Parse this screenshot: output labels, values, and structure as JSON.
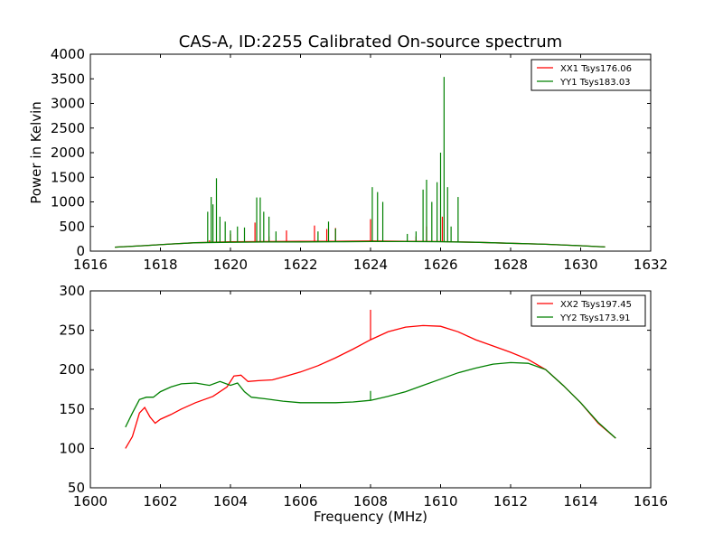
{
  "chart_data": [
    {
      "type": "line",
      "title": "CAS-A, ID:2255 Calibrated On-source spectrum",
      "xlabel": "",
      "ylabel": "Power in Kelvin",
      "xlim": [
        1616,
        1632
      ],
      "ylim": [
        0,
        4000
      ],
      "x_ticks": [
        1616,
        1618,
        1620,
        1622,
        1624,
        1626,
        1628,
        1630,
        1632
      ],
      "y_ticks": [
        0,
        500,
        1000,
        1500,
        2000,
        2500,
        3000,
        3500,
        4000
      ],
      "x_tick_labels": [
        "1616",
        "1618",
        "1620",
        "1622",
        "1624",
        "1626",
        "1628",
        "1630",
        "1632"
      ],
      "y_tick_labels": [
        "0",
        "500",
        "1000",
        "1500",
        "2000",
        "2500",
        "3000",
        "3500",
        "4000"
      ],
      "grid": false,
      "legend_position": "top-right",
      "series": [
        {
          "name": "XX1 Tsys176.06",
          "color": "#ff0000",
          "x": [
            1616.7,
            1617.5,
            1618.3,
            1619.0,
            1620.0,
            1621.0,
            1622.0,
            1623.0,
            1624.0,
            1625.0,
            1626.0,
            1627.0,
            1628.0,
            1629.0,
            1630.0,
            1630.7
          ],
          "values": [
            80,
            110,
            145,
            170,
            190,
            195,
            198,
            200,
            205,
            200,
            195,
            180,
            160,
            140,
            110,
            85
          ],
          "spikes": [
            [
              1619.4,
              220
            ],
            [
              1620.0,
              350
            ],
            [
              1620.7,
              580
            ],
            [
              1621.1,
              300
            ],
            [
              1621.6,
              420
            ],
            [
              1622.4,
              520
            ],
            [
              1622.75,
              450
            ],
            [
              1623.0,
              470
            ],
            [
              1624.0,
              650
            ],
            [
              1625.3,
              300
            ],
            [
              1625.6,
              500
            ],
            [
              1626.05,
              700
            ]
          ]
        },
        {
          "name": "YY1 Tsys183.03",
          "color": "#008000",
          "x": [
            1616.7,
            1617.5,
            1618.3,
            1619.0,
            1620.0,
            1621.0,
            1622.0,
            1623.0,
            1624.0,
            1625.0,
            1626.0,
            1627.0,
            1628.0,
            1629.0,
            1630.0,
            1630.7
          ],
          "values": [
            80,
            110,
            145,
            170,
            180,
            185,
            188,
            190,
            195,
            195,
            190,
            180,
            160,
            140,
            110,
            85
          ],
          "spikes": [
            [
              1619.35,
              800
            ],
            [
              1619.45,
              1100
            ],
            [
              1619.5,
              950
            ],
            [
              1619.6,
              1480
            ],
            [
              1619.7,
              700
            ],
            [
              1619.85,
              600
            ],
            [
              1620.0,
              420
            ],
            [
              1620.2,
              500
            ],
            [
              1620.4,
              480
            ],
            [
              1620.75,
              1090
            ],
            [
              1620.85,
              1090
            ],
            [
              1620.95,
              800
            ],
            [
              1621.1,
              700
            ],
            [
              1621.3,
              400
            ],
            [
              1622.5,
              400
            ],
            [
              1622.8,
              600
            ],
            [
              1623.0,
              460
            ],
            [
              1624.05,
              1300
            ],
            [
              1624.2,
              1200
            ],
            [
              1624.35,
              1000
            ],
            [
              1625.05,
              350
            ],
            [
              1625.3,
              400
            ],
            [
              1625.5,
              1250
            ],
            [
              1625.6,
              1450
            ],
            [
              1625.75,
              1000
            ],
            [
              1625.9,
              1400
            ],
            [
              1626.0,
              2000
            ],
            [
              1626.1,
              3540
            ],
            [
              1626.2,
              1300
            ],
            [
              1626.3,
              500
            ],
            [
              1626.5,
              1100
            ]
          ]
        }
      ]
    },
    {
      "type": "line",
      "title": "",
      "xlabel": "Frequency (MHz)",
      "ylabel": "",
      "xlim": [
        1600,
        1616
      ],
      "ylim": [
        50,
        300
      ],
      "x_ticks": [
        1600,
        1602,
        1604,
        1606,
        1608,
        1610,
        1612,
        1614,
        1616
      ],
      "y_ticks": [
        50,
        100,
        150,
        200,
        250,
        300
      ],
      "x_tick_labels": [
        "1600",
        "1602",
        "1604",
        "1606",
        "1608",
        "1610",
        "1612",
        "1614",
        "1616"
      ],
      "y_tick_labels": [
        "50",
        "100",
        "150",
        "200",
        "250",
        "300"
      ],
      "grid": false,
      "legend_position": "top-right",
      "series": [
        {
          "name": "XX2 Tsys197.45",
          "color": "#ff0000",
          "x": [
            1601.0,
            1601.2,
            1601.4,
            1601.55,
            1601.7,
            1601.85,
            1602.0,
            1602.3,
            1602.6,
            1603.0,
            1603.5,
            1603.9,
            1604.1,
            1604.3,
            1604.5,
            1604.8,
            1605.2,
            1605.6,
            1606.0,
            1606.5,
            1607.0,
            1607.5,
            1608.0,
            1608.5,
            1609.0,
            1609.5,
            1610.0,
            1610.5,
            1611.0,
            1611.5,
            1612.0,
            1612.5,
            1613.0,
            1613.5,
            1614.0,
            1614.5,
            1615.0
          ],
          "values": [
            100,
            115,
            145,
            152,
            140,
            132,
            137,
            143,
            150,
            158,
            166,
            178,
            192,
            193,
            185,
            186,
            187,
            192,
            197,
            205,
            215,
            226,
            238,
            248,
            254,
            256,
            255,
            248,
            238,
            230,
            222,
            213,
            200,
            180,
            158,
            132,
            113
          ],
          "spikes": [
            [
              1608.0,
              276
            ]
          ]
        },
        {
          "name": "YY2 Tsys173.91",
          "color": "#008000",
          "x": [
            1601.0,
            1601.2,
            1601.4,
            1601.6,
            1601.8,
            1602.0,
            1602.3,
            1602.6,
            1603.0,
            1603.4,
            1603.7,
            1604.0,
            1604.2,
            1604.4,
            1604.6,
            1605.0,
            1605.5,
            1606.0,
            1606.5,
            1607.0,
            1607.5,
            1608.0,
            1608.5,
            1609.0,
            1609.5,
            1610.0,
            1610.5,
            1611.0,
            1611.5,
            1612.0,
            1612.5,
            1613.0,
            1613.5,
            1614.0,
            1614.5,
            1615.0
          ],
          "values": [
            127,
            145,
            162,
            165,
            165,
            172,
            178,
            182,
            183,
            180,
            185,
            180,
            183,
            172,
            165,
            163,
            160,
            158,
            158,
            158,
            159,
            161,
            166,
            172,
            180,
            188,
            196,
            202,
            207,
            209,
            208,
            200,
            180,
            158,
            133,
            113
          ],
          "spikes": [
            [
              1608.0,
              173
            ]
          ]
        }
      ]
    }
  ]
}
